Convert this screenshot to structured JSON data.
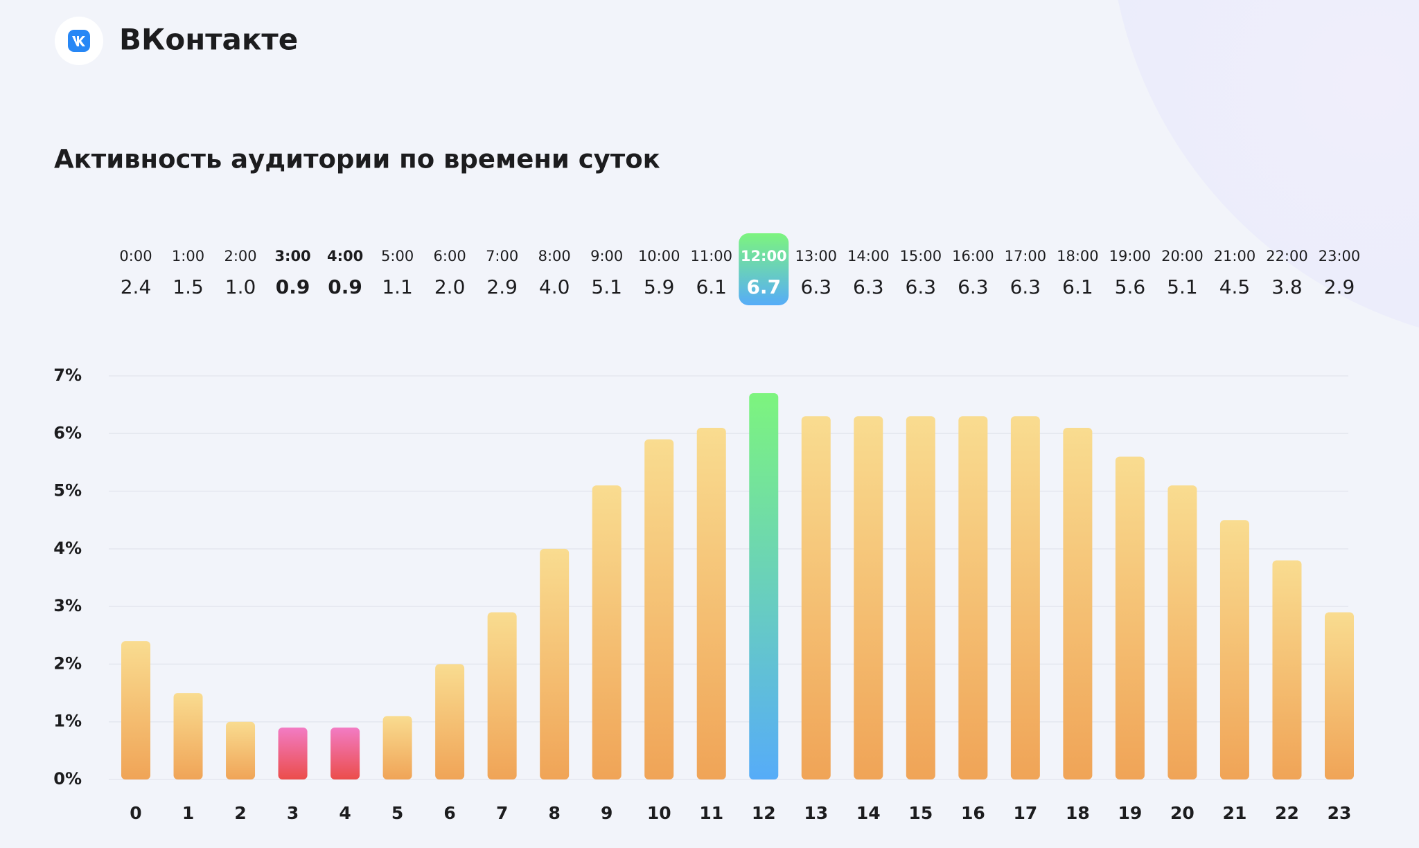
{
  "brand": "ВКонтакте",
  "chart_data": {
    "type": "bar",
    "title": "Активность аудитории по времени суток",
    "hours": [
      "0:00",
      "1:00",
      "2:00",
      "3:00",
      "4:00",
      "5:00",
      "6:00",
      "7:00",
      "8:00",
      "9:00",
      "10:00",
      "11:00",
      "12:00",
      "13:00",
      "14:00",
      "15:00",
      "16:00",
      "17:00",
      "18:00",
      "19:00",
      "20:00",
      "21:00",
      "22:00",
      "23:00"
    ],
    "categories": [
      "0",
      "1",
      "2",
      "3",
      "4",
      "5",
      "6",
      "7",
      "8",
      "9",
      "10",
      "11",
      "12",
      "13",
      "14",
      "15",
      "16",
      "17",
      "18",
      "19",
      "20",
      "21",
      "22",
      "23"
    ],
    "values": [
      2.4,
      1.5,
      1.0,
      0.9,
      0.9,
      1.1,
      2.0,
      2.9,
      4.0,
      5.1,
      5.9,
      6.1,
      6.7,
      6.3,
      6.3,
      6.3,
      6.3,
      6.3,
      6.1,
      5.6,
      5.1,
      4.5,
      3.8,
      2.9
    ],
    "value_labels": [
      "2.4",
      "1.5",
      "1.0",
      "0.9",
      "0.9",
      "1.1",
      "2.0",
      "2.9",
      "4.0",
      "5.1",
      "5.9",
      "6.1",
      "6.7",
      "6.3",
      "6.3",
      "6.3",
      "6.3",
      "6.3",
      "6.1",
      "5.6",
      "5.1",
      "4.5",
      "3.8",
      "2.9"
    ],
    "ylim": [
      0,
      7
    ],
    "yticks": [
      {
        "value": 0,
        "label": "0%"
      },
      {
        "value": 1,
        "label": "1%"
      },
      {
        "value": 2,
        "label": "2%"
      },
      {
        "value": 3,
        "label": "3%"
      },
      {
        "value": 4,
        "label": "4%"
      },
      {
        "value": 5,
        "label": "5%"
      },
      {
        "value": 6,
        "label": "6%"
      },
      {
        "value": 7,
        "label": "7%"
      }
    ],
    "grid": true,
    "colors": {
      "bar": [
        "#f9dc90",
        "#f0a457"
      ],
      "min": [
        "#f27cc4",
        "#eb4d4b"
      ],
      "max": [
        "#7df47e",
        "#56acf8"
      ]
    }
  }
}
